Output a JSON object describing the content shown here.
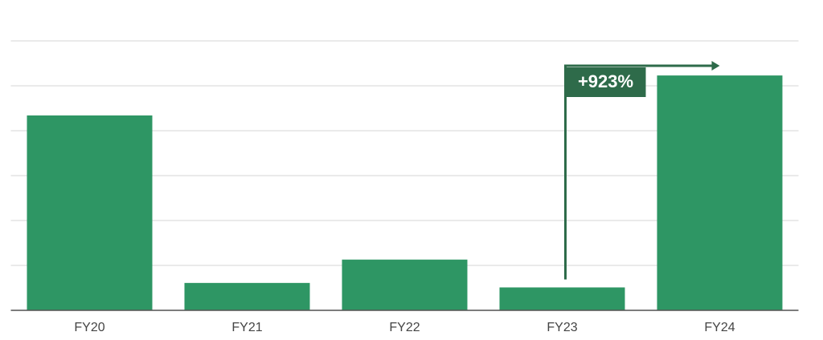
{
  "chart_data": {
    "type": "bar",
    "categories": [
      "FY20",
      "FY21",
      "FY22",
      "FY23",
      "FY24"
    ],
    "values": [
      4.34,
      0.61,
      1.13,
      0.51,
      5.23
    ],
    "color": "#2e9664",
    "ylim": [
      0,
      6
    ],
    "yticks": [
      0,
      1,
      2,
      3,
      4,
      5,
      6
    ],
    "grid": true,
    "annotation": "+923%"
  }
}
